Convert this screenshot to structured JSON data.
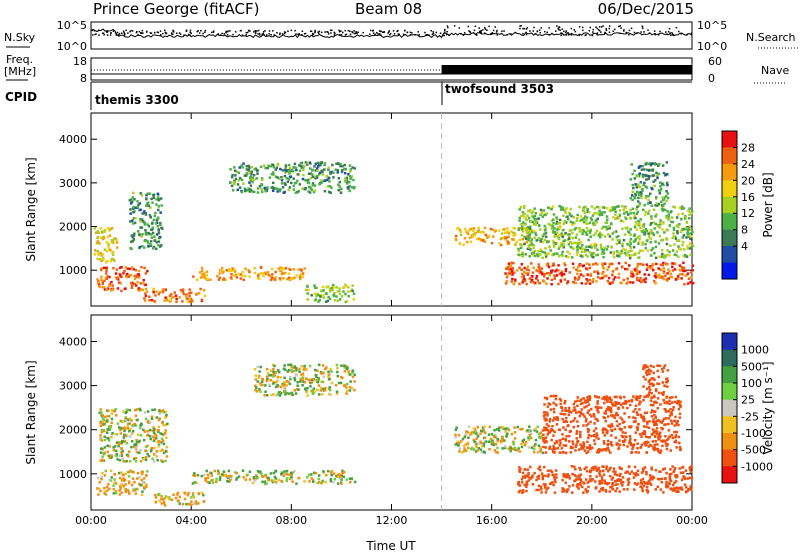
{
  "header": {
    "station": "Prince George (fitACF)",
    "beam": "Beam 08",
    "date": "06/Dec/2015"
  },
  "noise_panel": {
    "left_label": "N.Sky",
    "left_ticks": [
      "10^5",
      "10^0"
    ],
    "right_ticks": [
      "10^5",
      "10^0"
    ],
    "right_label": "N.Search"
  },
  "freq_panel": {
    "left_label_1": "Freq.",
    "left_label_2": "[MHz]",
    "left_ticks": [
      "18",
      "8"
    ],
    "right_ticks": [
      "60",
      "0"
    ],
    "right_label": "Nave"
  },
  "cpid_panel": {
    "label": "CPID",
    "programs": [
      {
        "name": "themis 3300",
        "start_hour": 0
      },
      {
        "name": "twofsound 3503",
        "start_hour": 14
      }
    ]
  },
  "chart_data": [
    {
      "type": "heatmap",
      "title": "",
      "xlabel": "Time UT",
      "ylabel": "Slant Range [km]",
      "x_ticks": [
        "00:00",
        "04:00",
        "08:00",
        "12:00",
        "16:00",
        "20:00",
        "00:00"
      ],
      "xlim_hours": [
        0,
        24
      ],
      "y_ticks": [
        1000,
        2000,
        3000,
        4000
      ],
      "ylim": [
        180,
        4600
      ],
      "colorbar": {
        "label": "Power [dB]",
        "ticks": [
          4,
          8,
          12,
          16,
          20,
          24,
          28
        ],
        "colors": [
          "#0018e8",
          "#1f4ea3",
          "#3a7a55",
          "#4bb045",
          "#a8d022",
          "#f0cf10",
          "#f59b10",
          "#ef6010",
          "#e81010"
        ]
      },
      "scatter_regions": [
        {
          "x": [
            0.2,
            2.2
          ],
          "y": [
            550,
            1100
          ],
          "level": 28
        },
        {
          "x": [
            0.1,
            1.0
          ],
          "y": [
            1200,
            2000
          ],
          "level": 20
        },
        {
          "x": [
            1.5,
            2.8
          ],
          "y": [
            1500,
            2800
          ],
          "level": 10
        },
        {
          "x": [
            2.0,
            4.5
          ],
          "y": [
            300,
            600
          ],
          "level": 26
        },
        {
          "x": [
            4.0,
            8.5
          ],
          "y": [
            800,
            1100
          ],
          "level": 24
        },
        {
          "x": [
            5.5,
            10.5
          ],
          "y": [
            2800,
            3500
          ],
          "level": 10
        },
        {
          "x": [
            8.5,
            10.5
          ],
          "y": [
            300,
            700
          ],
          "level": 14
        },
        {
          "x": [
            14.5,
            17.5
          ],
          "y": [
            1600,
            2000
          ],
          "level": 22
        },
        {
          "x": [
            16.5,
            24
          ],
          "y": [
            700,
            1200
          ],
          "level": 28
        },
        {
          "x": [
            17,
            24
          ],
          "y": [
            1300,
            2500
          ],
          "level": 14
        },
        {
          "x": [
            21.5,
            23
          ],
          "y": [
            2500,
            3500
          ],
          "level": 10
        }
      ]
    },
    {
      "type": "heatmap",
      "title": "",
      "xlabel": "Time UT",
      "ylabel": "Slant Range [km]",
      "x_ticks": [
        "00:00",
        "04:00",
        "08:00",
        "12:00",
        "16:00",
        "20:00",
        "00:00"
      ],
      "xlim_hours": [
        0,
        24
      ],
      "y_ticks": [
        1000,
        2000,
        3000,
        4000
      ],
      "ylim": [
        180,
        4600
      ],
      "colorbar": {
        "label": "Velocity [m s⁻¹]",
        "ticks": [
          1000,
          500,
          100,
          25,
          -25,
          -100,
          -500,
          -1000
        ],
        "colors": [
          "#1a30b0",
          "#2d6b5d",
          "#44a040",
          "#6ed040",
          "#c8c8c0",
          "#f0c020",
          "#f09010",
          "#ef5010",
          "#e81010"
        ]
      },
      "scatter_regions": [
        {
          "x": [
            0.2,
            2.2
          ],
          "y": [
            550,
            1100
          ],
          "level": -100
        },
        {
          "x": [
            0.3,
            3.0
          ],
          "y": [
            1300,
            2500
          ],
          "level": 0
        },
        {
          "x": [
            2.5,
            4.5
          ],
          "y": [
            300,
            600
          ],
          "level": -100
        },
        {
          "x": [
            4.0,
            10.5
          ],
          "y": [
            800,
            1100
          ],
          "level": 0
        },
        {
          "x": [
            6.5,
            10.5
          ],
          "y": [
            2800,
            3500
          ],
          "level": 0
        },
        {
          "x": [
            14.5,
            18.0
          ],
          "y": [
            1500,
            2100
          ],
          "level": 0
        },
        {
          "x": [
            17.0,
            24.0
          ],
          "y": [
            600,
            1200
          ],
          "level": -500
        },
        {
          "x": [
            18.0,
            23.5
          ],
          "y": [
            1500,
            2800
          ],
          "level": -500
        },
        {
          "x": [
            22.0,
            23.0
          ],
          "y": [
            2800,
            3500
          ],
          "level": -500
        }
      ]
    }
  ],
  "colors": {
    "dashed_line": "#bbbbbb",
    "frame": "#000000"
  }
}
